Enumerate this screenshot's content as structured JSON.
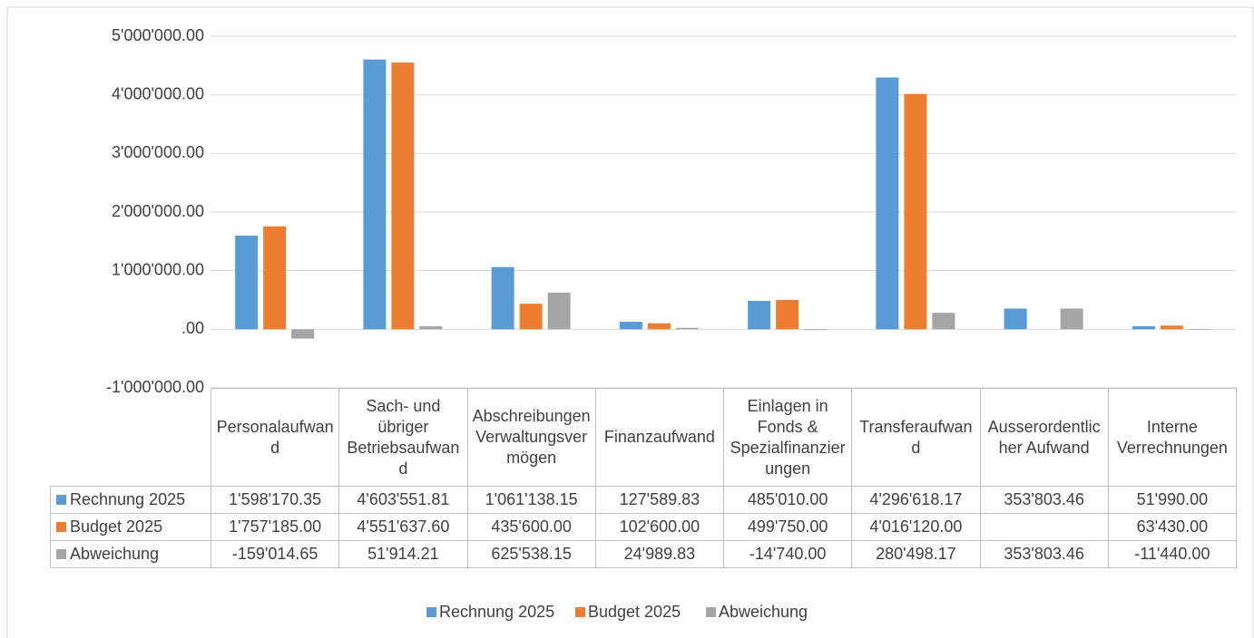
{
  "chart_data": {
    "type": "bar",
    "categories": [
      "Personalaufwand",
      "Sach- und übriger Betriebsaufwand",
      "Abschreibungen Verwaltungsvermögen",
      "Finanzaufwand",
      "Einlagen in Fonds & Spezialfinanzierungen",
      "Transferaufwand",
      "Ausserordentlicher Aufwand",
      "Interne Verrechnungen"
    ],
    "series": [
      {
        "name": "Rechnung 2025",
        "color": "#5b9bd5",
        "values": [
          1598170.35,
          4603551.81,
          1061138.15,
          127589.83,
          485010.0,
          4296618.17,
          353803.46,
          51990.0
        ],
        "value_labels": [
          "1'598'170.35",
          "4'603'551.81",
          "1'061'138.15",
          "127'589.83",
          "485'010.00",
          "4'296'618.17",
          "353'803.46",
          "51'990.00"
        ]
      },
      {
        "name": "Budget 2025",
        "color": "#ed7d31",
        "values": [
          1757185.0,
          4551637.6,
          435600.0,
          102600.0,
          499750.0,
          4016120.0,
          null,
          63430.0
        ],
        "value_labels": [
          "1'757'185.00",
          "4'551'637.60",
          "435'600.00",
          "102'600.00",
          "499'750.00",
          "4'016'120.00",
          null,
          "63'430.00"
        ]
      },
      {
        "name": "Abweichung",
        "color": "#a5a5a5",
        "values": [
          -159014.65,
          51914.21,
          625538.15,
          24989.83,
          -14740.0,
          280498.17,
          353803.46,
          -11440.0
        ],
        "value_labels": [
          "-159'014.65",
          "51'914.21",
          "625'538.15",
          "24'989.83",
          "-14'740.00",
          "280'498.17",
          "353'803.46",
          "-11'440.00"
        ]
      }
    ],
    "ylim": [
      -1000000,
      5000000
    ],
    "yticks": [
      {
        "value": -1000000,
        "label": "-1'000'000.00"
      },
      {
        "value": 0,
        "label": ".00"
      },
      {
        "value": 1000000,
        "label": "1'000'000.00"
      },
      {
        "value": 2000000,
        "label": "2'000'000.00"
      },
      {
        "value": 3000000,
        "label": "3'000'000.00"
      },
      {
        "value": 4000000,
        "label": "4'000'000.00"
      },
      {
        "value": 5000000,
        "label": "5'000'000.00"
      }
    ],
    "grid": true,
    "legend": "bottom",
    "data_table": true
  }
}
